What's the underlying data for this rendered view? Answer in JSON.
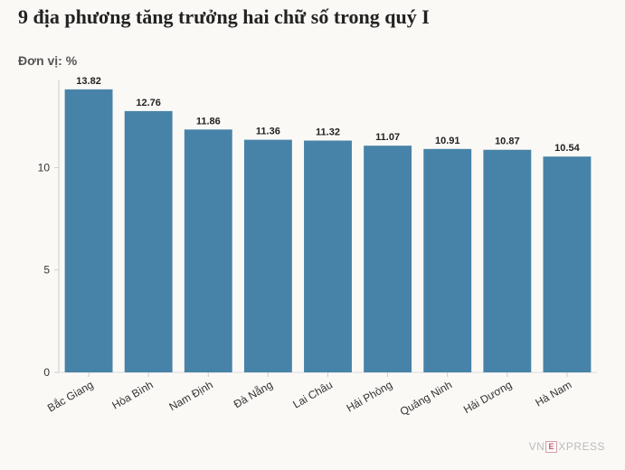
{
  "chart_data": {
    "type": "bar",
    "title": "9 địa phương tăng trưởng hai chữ số trong quý I",
    "unit_label": "Đơn vị: %",
    "categories": [
      "Bắc Giang",
      "Hòa Bình",
      "Nam Định",
      "Đà Nẵng",
      "Lai Châu",
      "Hải Phòng",
      "Quảng Ninh",
      "Hải Dương",
      "Hà Nam"
    ],
    "values": [
      13.82,
      12.76,
      11.86,
      11.36,
      11.32,
      11.07,
      10.91,
      10.87,
      10.54
    ],
    "value_labels": [
      "13.82",
      "12.76",
      "11.86",
      "11.36",
      "11.32",
      "11.07",
      "10.91",
      "10.87",
      "10.54"
    ],
    "yticks": [
      0,
      5,
      10
    ],
    "ylim": [
      0,
      14.3
    ],
    "bar_color": "#4783a8",
    "grid": false
  },
  "brand": {
    "prefix": "VN",
    "mark": "E",
    "suffix": "XPRESS",
    "mark_color": "#c06070"
  }
}
